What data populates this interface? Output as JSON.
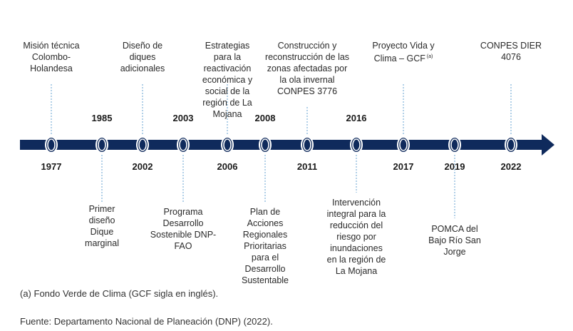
{
  "colors": {
    "axis": "#0f2a5c",
    "node_fill": "#0f2a5c",
    "node_ring": "#ffffff",
    "connector": "#7fb2d9"
  },
  "events": [
    {
      "year": "1977",
      "label": "Misión técnica\nColombo-\nHolandesa",
      "label_side": "above",
      "year_side": "below"
    },
    {
      "year": "1985",
      "label": "Primer\ndiseño\nDique\nmarginal",
      "label_side": "below",
      "year_side": "above"
    },
    {
      "year": "2002",
      "label": "Diseño de\ndiques\nadicionales",
      "label_side": "above",
      "year_side": "below"
    },
    {
      "year": "2003",
      "label": "Programa\nDesarrollo\nSostenible DNP-\nFAO",
      "label_side": "below",
      "year_side": "above"
    },
    {
      "year": "2006",
      "label": "Estrategias\npara la\nreactivación\neconómica y\nsocial de la\nregión de La\nMojana",
      "label_side": "above",
      "year_side": "below"
    },
    {
      "year": "2008",
      "label": "Plan de\nAcciones\nRegionales\nPrioritarias\npara el\nDesarrollo\nSustentable",
      "label_side": "below",
      "year_side": "above"
    },
    {
      "year": "2011",
      "label": "Construcción y\nreconstrucción  de las\nzonas afectadas por\nla ola invernal\nCONPES 3776",
      "label_side": "above",
      "year_side": "below"
    },
    {
      "year": "2016",
      "label": "Intervención\nintegral para la\nreducción del\nriesgo por\ninundaciones\nen la región de\nLa Mojana",
      "label_side": "below",
      "year_side": "above"
    },
    {
      "year": "2017",
      "label": "Proyecto Vida y\nClima – GCF",
      "label_sup": "(a)",
      "label_side": "above",
      "year_side": "below"
    },
    {
      "year": "2019",
      "label": "POMCA del\nBajo Río San\nJorge",
      "label_side": "below",
      "year_side": "below"
    },
    {
      "year": "2022",
      "label": "CONPES DIER\n4076",
      "label_side": "above",
      "year_side": "below"
    }
  ],
  "footnote": "(a) Fondo Verde de Clima (GCF sigla en inglés).",
  "source": "Fuente: Departamento Nacional de Planeación (DNP) (2022)."
}
